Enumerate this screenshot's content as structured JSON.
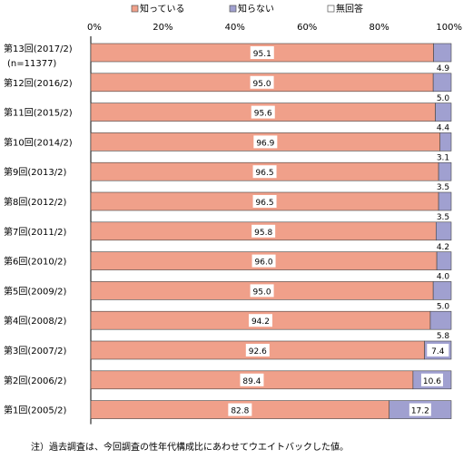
{
  "chart_data": {
    "type": "bar",
    "orientation": "horizontal",
    "stacked": true,
    "xlim": [
      0,
      100
    ],
    "x_ticks": [
      "0%",
      "20%",
      "40%",
      "60%",
      "80%",
      "100%"
    ],
    "legend_position": "top",
    "categories": [
      [
        "第13回(2017/2)",
        "(n=11377)"
      ],
      [
        "第12回(2016/2)"
      ],
      [
        "第11回(2015/2)"
      ],
      [
        "第10回(2014/2)"
      ],
      [
        "第9回(2013/2)"
      ],
      [
        "第8回(2012/2)"
      ],
      [
        "第7回(2011/2)"
      ],
      [
        "第6回(2010/2)"
      ],
      [
        "第5回(2009/2)"
      ],
      [
        "第4回(2008/2)"
      ],
      [
        "第3回(2007/2)"
      ],
      [
        "第2回(2006/2)"
      ],
      [
        "第1回(2005/2)"
      ]
    ],
    "series": [
      {
        "name": "知っている",
        "color": "#f0a08a",
        "values": [
          95.1,
          95.0,
          95.6,
          96.9,
          96.5,
          96.5,
          95.8,
          96.0,
          95.0,
          94.2,
          92.6,
          89.4,
          82.8
        ],
        "labels": [
          "95.1",
          "95.0",
          "95.6",
          "96.9",
          "96.5",
          "96.5",
          "95.8",
          "96.0",
          "95.0",
          "94.2",
          "92.6",
          "89.4",
          "82.8"
        ]
      },
      {
        "name": "知らない",
        "color": "#a0a0d0",
        "values": [
          4.9,
          5.0,
          4.4,
          3.1,
          3.5,
          3.5,
          4.2,
          4.0,
          5.0,
          5.8,
          7.4,
          10.6,
          17.2
        ],
        "labels": [
          "4.9",
          "5.0",
          "4.4",
          "3.1",
          "3.5",
          "3.5",
          "4.2",
          "4.0",
          "5.0",
          "5.8",
          "7.4",
          "10.6",
          "17.2"
        ]
      },
      {
        "name": "無回答",
        "color": "#ffffff",
        "values": [
          0,
          0,
          0,
          0,
          0,
          0,
          0,
          0,
          0,
          0,
          0,
          0,
          0
        ]
      }
    ]
  },
  "note": "注）過去調査は、今回調査の性年代構成比にあわせてウエイトバックした値。"
}
